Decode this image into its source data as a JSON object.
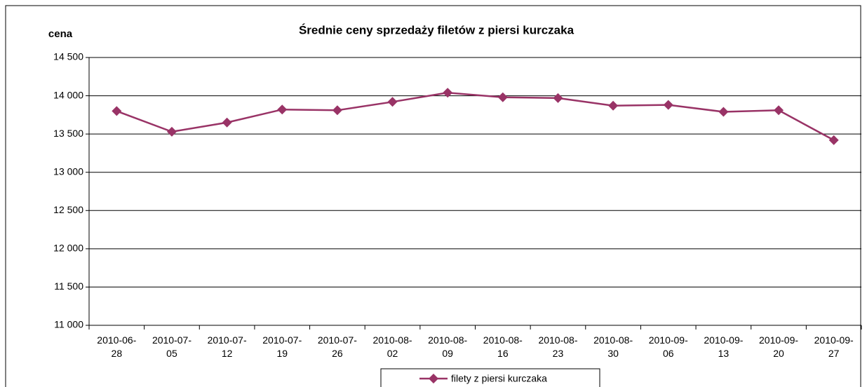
{
  "chart_data": {
    "type": "line",
    "title": "Średnie ceny sprzedaży filetów z piersi kurczaka",
    "y_label": "cena",
    "categories": [
      "2010-06-28",
      "2010-07-05",
      "2010-07-12",
      "2010-07-19",
      "2010-07-26",
      "2010-08-02",
      "2010-08-09",
      "2010-08-16",
      "2010-08-23",
      "2010-08-30",
      "2010-09-06",
      "2010-09-13",
      "2010-09-20",
      "2010-09-27"
    ],
    "series": [
      {
        "name": "filety z piersi kurczaka",
        "color": "#993366",
        "values": [
          13800,
          13530,
          13650,
          13820,
          13810,
          13920,
          14040,
          13980,
          13970,
          13870,
          13880,
          13790,
          13810,
          13420
        ]
      }
    ],
    "ylim": [
      11000,
      14500
    ],
    "yticks": [
      {
        "value": 11000,
        "label": "11 000"
      },
      {
        "value": 11500,
        "label": "11 500"
      },
      {
        "value": 12000,
        "label": "12 000"
      },
      {
        "value": 12500,
        "label": "12 500"
      },
      {
        "value": 13000,
        "label": "13 000"
      },
      {
        "value": 13500,
        "label": "13 500"
      },
      {
        "value": 14000,
        "label": "14 000"
      },
      {
        "value": 14500,
        "label": "14 500"
      }
    ],
    "grid": true,
    "legend": "bottom"
  }
}
